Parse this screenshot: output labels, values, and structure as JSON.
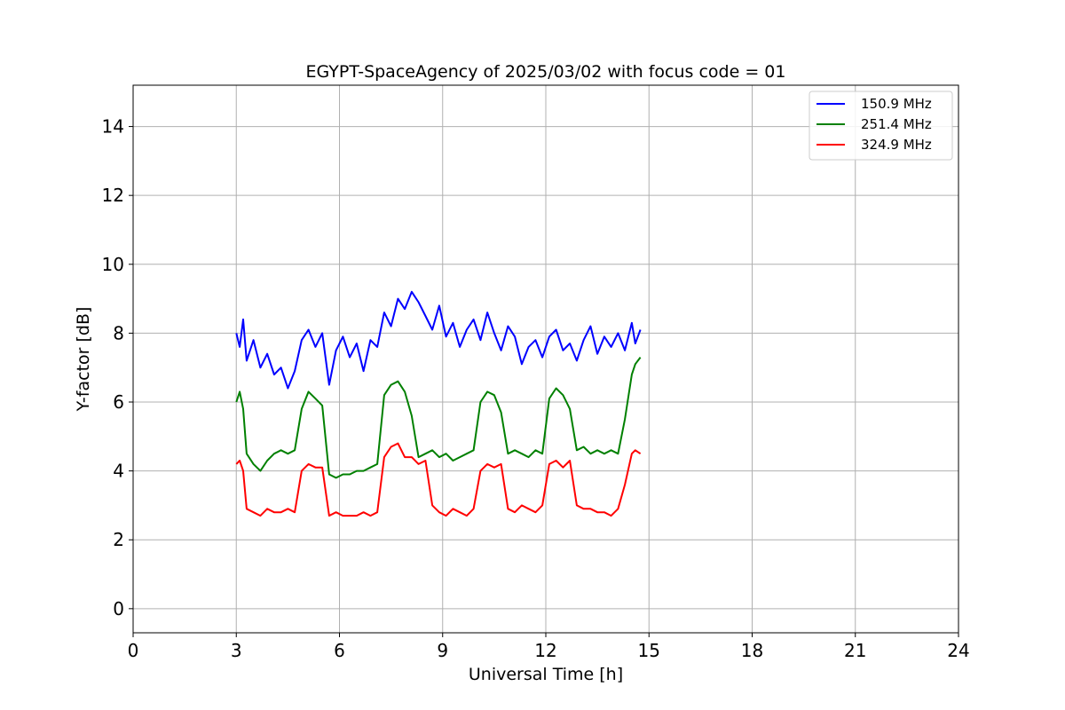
{
  "chart_data": {
    "type": "line",
    "title": "EGYPT-SpaceAgency of 2025/03/02 with focus code = 01",
    "xlabel": "Universal Time [h]",
    "ylabel": "Y-factor [dB]",
    "xlim": [
      0,
      24
    ],
    "ylim": [
      -0.7,
      15.2
    ],
    "x_ticks": [
      0,
      3,
      6,
      9,
      12,
      15,
      18,
      21,
      24
    ],
    "y_ticks": [
      0,
      2,
      4,
      6,
      8,
      10,
      12,
      14
    ],
    "grid": true,
    "legend_position": "top-right",
    "series": [
      {
        "name": "150.9 MHz",
        "color": "#0000ff",
        "x": [
          3.0,
          3.1,
          3.2,
          3.3,
          3.5,
          3.7,
          3.9,
          4.1,
          4.3,
          4.5,
          4.7,
          4.9,
          5.1,
          5.3,
          5.5,
          5.7,
          5.9,
          6.1,
          6.3,
          6.5,
          6.7,
          6.9,
          7.1,
          7.3,
          7.5,
          7.7,
          7.9,
          8.1,
          8.3,
          8.5,
          8.7,
          8.9,
          9.1,
          9.3,
          9.5,
          9.7,
          9.9,
          10.1,
          10.3,
          10.5,
          10.7,
          10.9,
          11.1,
          11.3,
          11.5,
          11.7,
          11.9,
          12.1,
          12.3,
          12.5,
          12.7,
          12.9,
          13.1,
          13.3,
          13.5,
          13.7,
          13.9,
          14.1,
          14.3,
          14.5,
          14.6,
          14.75
        ],
        "y": [
          8.0,
          7.6,
          8.4,
          7.2,
          7.8,
          7.0,
          7.4,
          6.8,
          7.0,
          6.4,
          6.9,
          7.8,
          8.1,
          7.6,
          8.0,
          6.5,
          7.5,
          7.9,
          7.3,
          7.7,
          6.9,
          7.8,
          7.6,
          8.6,
          8.2,
          9.0,
          8.7,
          9.2,
          8.9,
          8.5,
          8.1,
          8.8,
          7.9,
          8.3,
          7.6,
          8.1,
          8.4,
          7.8,
          8.6,
          8.0,
          7.5,
          8.2,
          7.9,
          7.1,
          7.6,
          7.8,
          7.3,
          7.9,
          8.1,
          7.5,
          7.7,
          7.2,
          7.8,
          8.2,
          7.4,
          7.9,
          7.6,
          8.0,
          7.5,
          8.3,
          7.7,
          8.1
        ]
      },
      {
        "name": "251.4 MHz",
        "color": "#008000",
        "x": [
          3.0,
          3.1,
          3.2,
          3.3,
          3.5,
          3.7,
          3.9,
          4.1,
          4.3,
          4.5,
          4.7,
          4.9,
          5.1,
          5.3,
          5.5,
          5.7,
          5.9,
          6.1,
          6.3,
          6.5,
          6.7,
          6.9,
          7.1,
          7.3,
          7.5,
          7.7,
          7.9,
          8.1,
          8.3,
          8.5,
          8.7,
          8.9,
          9.1,
          9.3,
          9.5,
          9.7,
          9.9,
          10.1,
          10.3,
          10.5,
          10.7,
          10.9,
          11.1,
          11.3,
          11.5,
          11.7,
          11.9,
          12.1,
          12.3,
          12.5,
          12.7,
          12.9,
          13.1,
          13.3,
          13.5,
          13.7,
          13.9,
          14.1,
          14.3,
          14.5,
          14.6,
          14.75
        ],
        "y": [
          6.0,
          6.3,
          5.8,
          4.5,
          4.2,
          4.0,
          4.3,
          4.5,
          4.6,
          4.5,
          4.6,
          5.8,
          6.3,
          6.1,
          5.9,
          3.9,
          3.8,
          3.9,
          3.9,
          4.0,
          4.0,
          4.1,
          4.2,
          6.2,
          6.5,
          6.6,
          6.3,
          5.6,
          4.4,
          4.5,
          4.6,
          4.4,
          4.5,
          4.3,
          4.4,
          4.5,
          4.6,
          6.0,
          6.3,
          6.2,
          5.7,
          4.5,
          4.6,
          4.5,
          4.4,
          4.6,
          4.5,
          6.1,
          6.4,
          6.2,
          5.8,
          4.6,
          4.7,
          4.5,
          4.6,
          4.5,
          4.6,
          4.5,
          5.5,
          6.8,
          7.1,
          7.3
        ]
      },
      {
        "name": "324.9 MHz",
        "color": "#ff0000",
        "x": [
          3.0,
          3.1,
          3.2,
          3.3,
          3.5,
          3.7,
          3.9,
          4.1,
          4.3,
          4.5,
          4.7,
          4.9,
          5.1,
          5.3,
          5.5,
          5.7,
          5.9,
          6.1,
          6.3,
          6.5,
          6.7,
          6.9,
          7.1,
          7.3,
          7.5,
          7.7,
          7.9,
          8.1,
          8.3,
          8.5,
          8.7,
          8.9,
          9.1,
          9.3,
          9.5,
          9.7,
          9.9,
          10.1,
          10.3,
          10.5,
          10.7,
          10.9,
          11.1,
          11.3,
          11.5,
          11.7,
          11.9,
          12.1,
          12.3,
          12.5,
          12.7,
          12.9,
          13.1,
          13.3,
          13.5,
          13.7,
          13.9,
          14.1,
          14.3,
          14.5,
          14.6,
          14.75
        ],
        "y": [
          4.2,
          4.3,
          4.0,
          2.9,
          2.8,
          2.7,
          2.9,
          2.8,
          2.8,
          2.9,
          2.8,
          4.0,
          4.2,
          4.1,
          4.1,
          2.7,
          2.8,
          2.7,
          2.7,
          2.7,
          2.8,
          2.7,
          2.8,
          4.4,
          4.7,
          4.8,
          4.4,
          4.4,
          4.2,
          4.3,
          3.0,
          2.8,
          2.7,
          2.9,
          2.8,
          2.7,
          2.9,
          4.0,
          4.2,
          4.1,
          4.2,
          2.9,
          2.8,
          3.0,
          2.9,
          2.8,
          3.0,
          4.2,
          4.3,
          4.1,
          4.3,
          3.0,
          2.9,
          2.9,
          2.8,
          2.8,
          2.7,
          2.9,
          3.6,
          4.5,
          4.6,
          4.5
        ]
      }
    ]
  }
}
